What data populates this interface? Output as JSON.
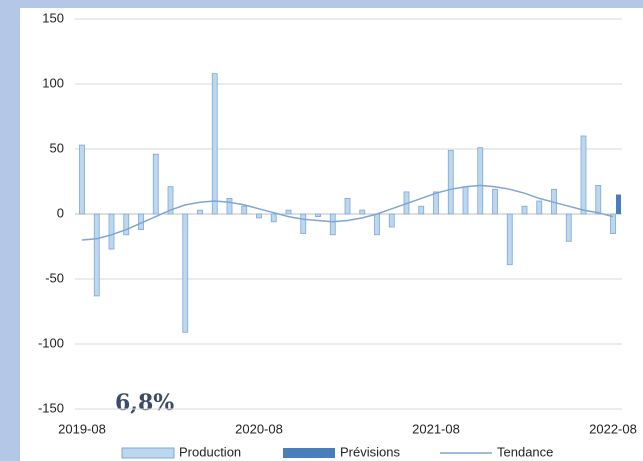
{
  "chart_data": {
    "type": "bar",
    "categories": [
      "2019-08",
      null,
      null,
      null,
      null,
      null,
      null,
      null,
      null,
      null,
      null,
      null,
      "2020-08",
      null,
      null,
      null,
      null,
      null,
      null,
      null,
      null,
      null,
      null,
      null,
      "2021-08",
      null,
      null,
      null,
      null,
      null,
      null,
      null,
      null,
      null,
      null,
      null,
      "2022-08"
    ],
    "series": [
      {
        "name": "Production",
        "type": "bar",
        "color": "#bdd7ee",
        "stroke": "#7da7d9",
        "values": [
          53,
          -63,
          -27,
          -16,
          -12,
          46,
          21,
          -91,
          3,
          108,
          12,
          6,
          -3,
          -6,
          3,
          -15,
          -2,
          -16,
          12,
          3,
          -16,
          -10,
          17,
          6,
          17,
          49,
          21,
          51,
          19,
          -39,
          6,
          10,
          19,
          -21,
          60,
          22,
          -15
        ]
      },
      {
        "name": "Prévisions",
        "type": "bar",
        "color": "#4a7ebb",
        "values": [
          null,
          null,
          null,
          null,
          null,
          null,
          null,
          null,
          null,
          null,
          null,
          null,
          null,
          null,
          null,
          null,
          null,
          null,
          null,
          null,
          null,
          null,
          null,
          null,
          null,
          null,
          null,
          null,
          null,
          null,
          null,
          null,
          null,
          null,
          null,
          null,
          15
        ]
      },
      {
        "name": "Tendance",
        "type": "line",
        "color": "#7fa6d3",
        "values": [
          -20,
          -19,
          -16,
          -12,
          -7,
          -2,
          3,
          7,
          9,
          10,
          9,
          7,
          4,
          1,
          -2,
          -4,
          -5,
          -6,
          -5,
          -3,
          0,
          4,
          8,
          12,
          16,
          19,
          21,
          22,
          21,
          19,
          16,
          12,
          9,
          6,
          3,
          1,
          -2
        ]
      }
    ],
    "annotation": "6,8%",
    "ylim": [
      -150,
      150
    ],
    "yticks": [
      -150,
      -100,
      -50,
      0,
      50,
      100,
      150
    ],
    "grid": true,
    "legend": "bottom"
  }
}
